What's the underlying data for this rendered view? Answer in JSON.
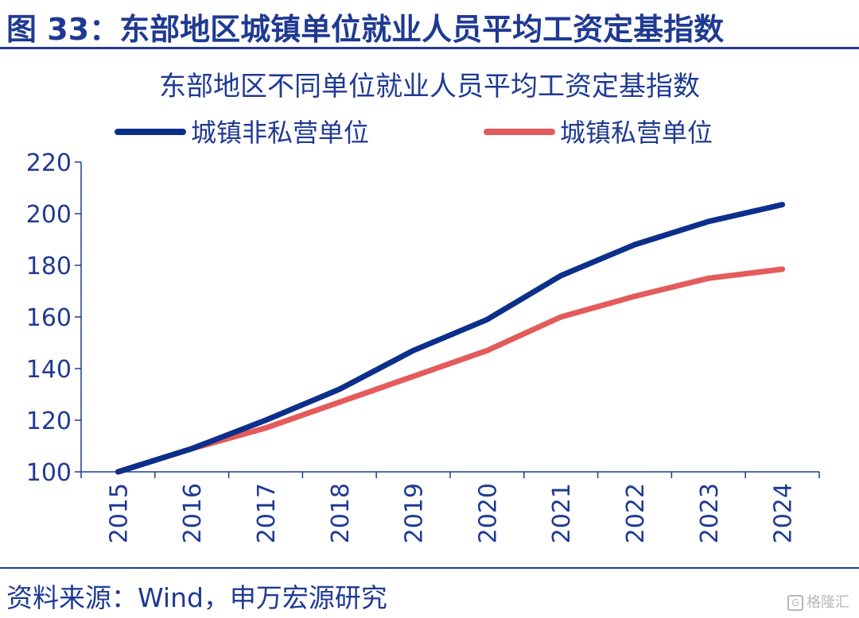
{
  "figure": {
    "title": "图 33：东部地区城镇单位就业人员平均工资定基指数",
    "source": "资料来源：Wind，申万宏源研究",
    "watermark": "格隆汇"
  },
  "colors": {
    "accent": "#1f3a93",
    "series_non_private": "#0b2f8a",
    "series_private": "#e45b5b",
    "axis": "#1f3a93"
  },
  "chart_data": {
    "type": "line",
    "title": "东部地区不同单位就业人员平均工资定基指数",
    "xlabel": "",
    "ylabel": "",
    "categories": [
      "2015",
      "2016",
      "2017",
      "2018",
      "2019",
      "2020",
      "2021",
      "2022",
      "2023",
      "2024"
    ],
    "ylim": [
      100,
      220
    ],
    "yticks": [
      "100",
      "120",
      "140",
      "160",
      "180",
      "200",
      "220"
    ],
    "grid": false,
    "legend_position": "top",
    "series": [
      {
        "name": "城镇非私营单位",
        "values": [
          100,
          109,
          120,
          132,
          147,
          159,
          176,
          188,
          197,
          203.5
        ]
      },
      {
        "name": "城镇私营单位",
        "values": [
          100,
          109,
          117,
          127,
          137,
          147,
          160,
          168,
          175,
          178.5
        ]
      }
    ]
  }
}
